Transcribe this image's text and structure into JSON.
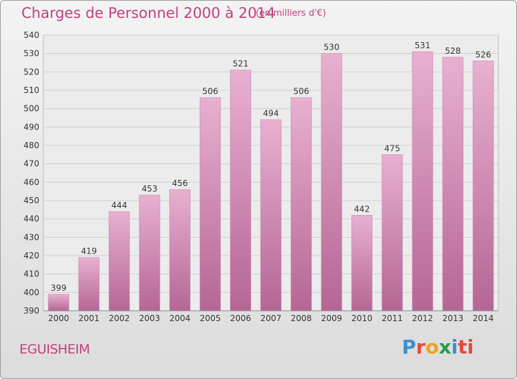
{
  "header": {
    "title": "Charges de Personnel 2000 à 2014",
    "subtitle": "(en milliers d'€)"
  },
  "footer": {
    "commune": "EGUISHEIM",
    "logo_text": "Proxiti"
  },
  "colors": {
    "title": "#c0417f",
    "bar_top": "#e8b0d0",
    "bar_bottom": "#b56695",
    "grid": "#cfcfcf",
    "axis_text": "#333333"
  },
  "chart_data": {
    "type": "bar",
    "title": "Charges de Personnel 2000 à 2014",
    "subtitle": "(en milliers d'€)",
    "categories": [
      "2000",
      "2001",
      "2002",
      "2003",
      "2004",
      "2005",
      "2006",
      "2007",
      "2008",
      "2009",
      "2010",
      "2011",
      "2012",
      "2013",
      "2014"
    ],
    "values": [
      399,
      419,
      444,
      453,
      456,
      506,
      521,
      494,
      506,
      530,
      442,
      475,
      531,
      528,
      526
    ],
    "ylim": [
      390,
      540
    ],
    "yticks": [
      390,
      400,
      410,
      420,
      430,
      440,
      450,
      460,
      470,
      480,
      490,
      500,
      510,
      520,
      530,
      540
    ],
    "grid": true,
    "data_labels": true
  }
}
